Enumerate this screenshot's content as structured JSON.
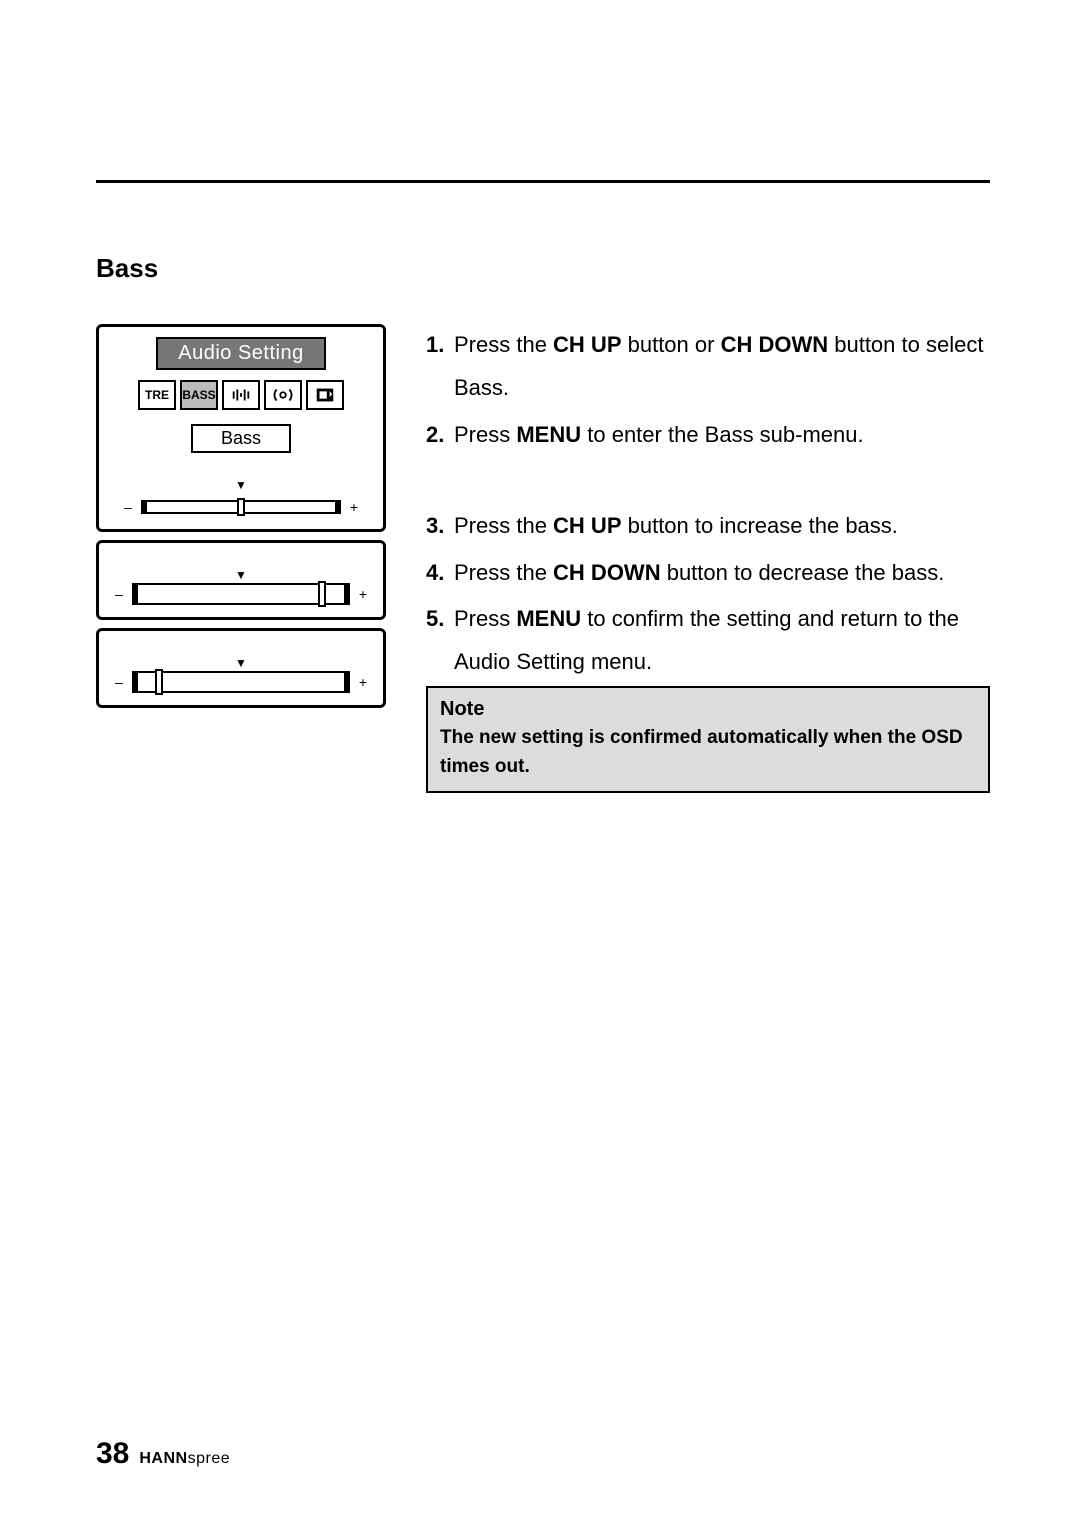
{
  "section_title": "Bass",
  "osd": {
    "title": "Audio  Setting",
    "tabs": [
      "TRE",
      "BASS"
    ],
    "selected_label": "Bass",
    "slider_minus": "–",
    "slider_plus": "+",
    "sliders": {
      "main_knob_pct": 48,
      "inc_knob_pct": 86,
      "dec_knob_pct": 10
    }
  },
  "steps_a": [
    {
      "n": "1.",
      "pre": "Press the ",
      "b1": "CH UP",
      "mid": " button or ",
      "b2": "CH DOWN",
      "post": " button to select Bass."
    },
    {
      "n": "2.",
      "pre": "Press ",
      "b1": "MENU",
      "mid": "",
      "b2": "",
      "post": " to enter the Bass sub-menu."
    }
  ],
  "steps_b": [
    {
      "n": "3.",
      "pre": "Press the ",
      "b1": "CH UP",
      "mid": "",
      "b2": "",
      "post": " button to increase the bass."
    },
    {
      "n": "4.",
      "pre": "Press the ",
      "b1": "CH DOWN",
      "mid": "",
      "b2": "",
      "post": " button to decrease the bass."
    },
    {
      "n": "5.",
      "pre": "Press ",
      "b1": "MENU",
      "mid": "",
      "b2": "",
      "post": " to confirm the setting and return to the Audio Setting menu."
    }
  ],
  "note": {
    "title": "Note",
    "body": "The new setting is confirmed automatically when the OSD times out."
  },
  "footer": {
    "page": "38",
    "brand_bold": "HANN",
    "brand_rest": "spree"
  }
}
